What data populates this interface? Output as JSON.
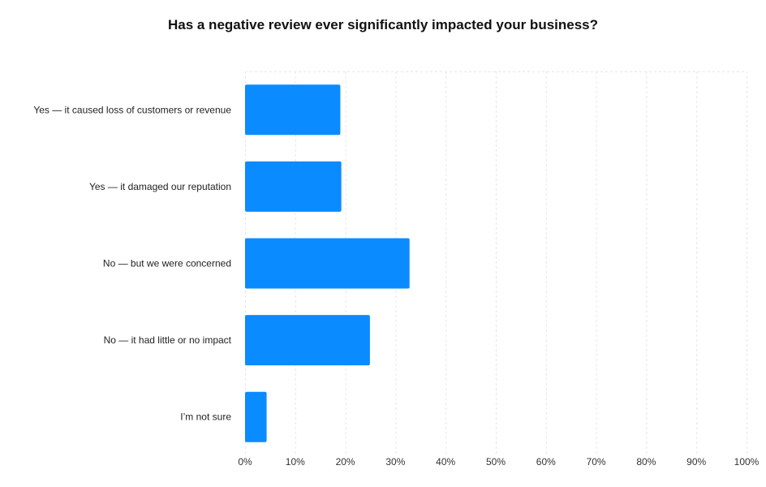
{
  "chart_data": {
    "type": "bar",
    "orientation": "horizontal",
    "title": "Has a negative review ever significantly impacted your business?",
    "categories": [
      "Yes — it caused loss of customers or revenue",
      "Yes — it damaged our reputation",
      "No — but we were concerned",
      "No — it had little or no impact",
      "I’m not sure"
    ],
    "values": [
      19,
      19.2,
      32.8,
      24.9,
      4.3
    ],
    "xlim": [
      0,
      100
    ],
    "xticks": [
      0,
      10,
      20,
      30,
      40,
      50,
      60,
      70,
      80,
      90,
      100
    ],
    "xtick_labels": [
      "0%",
      "10%",
      "20%",
      "30%",
      "40%",
      "50%",
      "60%",
      "70%",
      "80%",
      "90%",
      "100%"
    ],
    "xlabel": "",
    "ylabel": "",
    "grid": true,
    "bar_color": "#0a8bff",
    "legend": "none"
  }
}
